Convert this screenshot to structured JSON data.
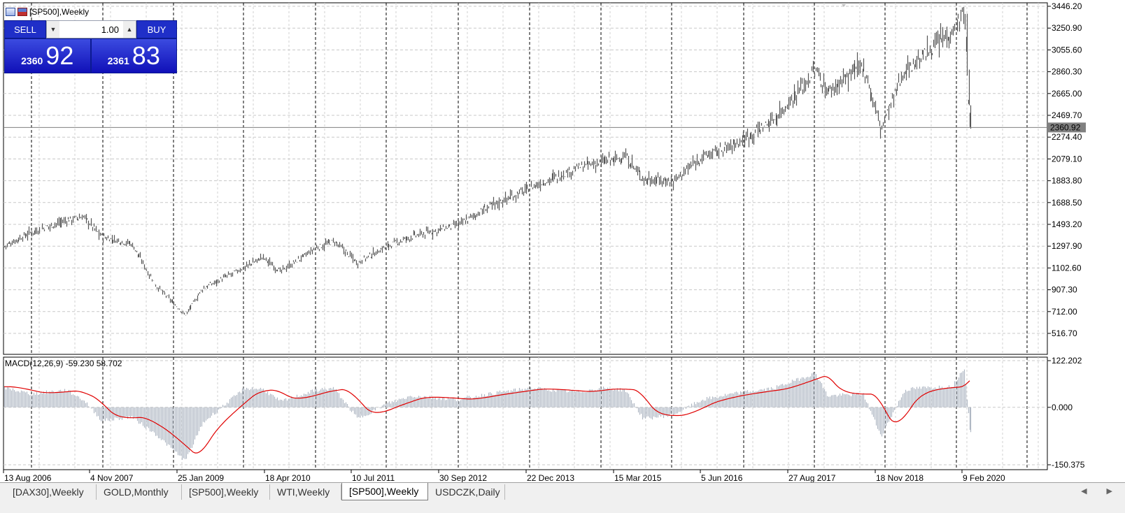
{
  "window": {
    "symbol_title": "[SP500],Weekly"
  },
  "trade_panel": {
    "sell_label": "SELL",
    "buy_label": "BUY",
    "lot_value": "1.00",
    "bid_small": "2360",
    "bid_big": "92",
    "ask_small": "2361",
    "ask_big": "83"
  },
  "indicator": {
    "label": "MACD(12,26,9) -59.230 58.702"
  },
  "current_price_label": "2360.92",
  "price_axis_labels": [
    "3446.20",
    "3250.90",
    "3055.60",
    "2860.30",
    "2665.00",
    "2469.70",
    "2274.40",
    "2079.10",
    "1883.80",
    "1688.50",
    "1493.20",
    "1297.90",
    "1102.60",
    "907.30",
    "712.00",
    "516.70"
  ],
  "macd_axis_labels": [
    "122.202",
    "0.000",
    "-150.375"
  ],
  "date_labels": [
    "13 Aug 2006",
    "4 Nov 2007",
    "25 Jan 2009",
    "18 Apr 2010",
    "10 Jul 2011",
    "30 Sep 2012",
    "22 Dec 2013",
    "15 Mar 2015",
    "5 Jun 2016",
    "27 Aug 2017",
    "18 Nov 2018",
    "9 Feb 2020"
  ],
  "tabs": [
    {
      "label": "[DAX30],Weekly",
      "active": false
    },
    {
      "label": "GOLD,Monthly",
      "active": false
    },
    {
      "label": "[SP500],Weekly",
      "active": false
    },
    {
      "label": "WTI,Weekly",
      "active": false
    },
    {
      "label": "[SP500],Weekly",
      "active": true
    },
    {
      "label": "USDCZK,Daily",
      "active": false
    }
  ],
  "scroll": {
    "left_icon": "triangle-left",
    "right_icon": "triangle-right"
  },
  "colors": {
    "bars": "#555555",
    "macd_hist": "#b0b8c4",
    "signal": "#e00000",
    "panel_blue": "#1f2fc8",
    "grid": "#c8c8c8"
  },
  "chart_data": {
    "type": "bar",
    "x": [
      "2006-08",
      "2007-01",
      "2007-07",
      "2007-10",
      "2008-01",
      "2008-06",
      "2008-10",
      "2009-03",
      "2009-06",
      "2010-01",
      "2010-04",
      "2010-07",
      "2011-01",
      "2011-04",
      "2011-08",
      "2012-01",
      "2012-05",
      "2013-01",
      "2013-06",
      "2014-01",
      "2014-09",
      "2015-01",
      "2015-05",
      "2015-08",
      "2016-01",
      "2016-06",
      "2016-11",
      "2017-06",
      "2018-01",
      "2018-03",
      "2018-09",
      "2018-12",
      "2019-04",
      "2019-06",
      "2019-12",
      "2020-02",
      "2020-03"
    ],
    "series": [
      {
        "values": [
          1280,
          1420,
          1530,
          1560,
          1380,
          1320,
          950,
          680,
          920,
          1110,
          1200,
          1070,
          1280,
          1340,
          1150,
          1300,
          1380,
          1490,
          1650,
          1820,
          2000,
          2050,
          2100,
          1900,
          1880,
          2100,
          2200,
          2430,
          2870,
          2680,
          2920,
          2350,
          2880,
          2950,
          3230,
          3390,
          2360
        ]
      },
      {
        "values": [
          54,
          35,
          45,
          18,
          -35,
          -25,
          -70,
          -140,
          -40,
          50,
          48,
          15,
          45,
          50,
          -30,
          10,
          30,
          20,
          35,
          50,
          40,
          50,
          45,
          -30,
          -20,
          20,
          35,
          50,
          90,
          30,
          35,
          -75,
          45,
          50,
          55,
          105,
          -65
        ]
      }
    ],
    "price_ylim": [
      516.7,
      3446.2
    ],
    "macd_ylim": [
      -150.375,
      122.202
    ],
    "grid": true
  }
}
